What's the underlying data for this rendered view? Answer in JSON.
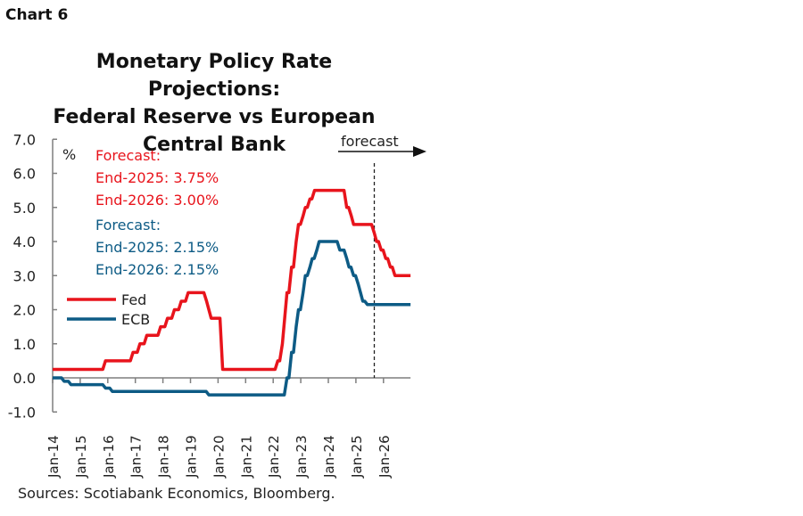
{
  "header": {
    "chart_label": "Chart 6"
  },
  "footer": {
    "source": "Sources: Scotiabank Economics, Bloomberg."
  },
  "colors": {
    "fed": "#e8141c",
    "ecb": "#0d5b85",
    "axis": "#7f7f7f"
  },
  "chart_data": {
    "type": "line",
    "title": "Monetary Policy Rate Projections: Federal Reserve vs European Central Bank",
    "title_lines": [
      "Monetary Policy Rate Projections:",
      "Federal Reserve vs European",
      "Central Bank"
    ],
    "ylabel": "%",
    "ylim": [
      -1.0,
      7.0
    ],
    "y_ticks": [
      "7.0",
      "6.0",
      "5.0",
      "4.0",
      "3.0",
      "2.0",
      "1.0",
      "0.0",
      "-1.0"
    ],
    "x_ticks": [
      "Jan-14",
      "Jan-15",
      "Jan-16",
      "Jan-17",
      "Jan-18",
      "Jan-19",
      "Jan-20",
      "Jan-21",
      "Jan-22",
      "Jan-23",
      "Jan-24",
      "Jan-25",
      "Jan-26"
    ],
    "xlim": [
      "2014-01",
      "2026-12"
    ],
    "forecast_start": "2025-09",
    "forecast_label": "forecast",
    "legend": {
      "placement": "left",
      "entries": [
        "Fed",
        "ECB"
      ]
    },
    "annotations": {
      "fed": [
        "Forecast:",
        "End-2025: 3.75%",
        "End-2026: 3.00%"
      ],
      "ecb": [
        "Forecast:",
        "End-2025: 2.15%",
        "End-2026: 2.15%"
      ]
    },
    "series": [
      {
        "name": "Fed",
        "color": "#e8141c",
        "points": [
          [
            "2014-01",
            0.25
          ],
          [
            "2015-12",
            0.5
          ],
          [
            "2016-12",
            0.75
          ],
          [
            "2017-03",
            1.0
          ],
          [
            "2017-06",
            1.25
          ],
          [
            "2017-12",
            1.5
          ],
          [
            "2018-03",
            1.75
          ],
          [
            "2018-06",
            2.0
          ],
          [
            "2018-09",
            2.25
          ],
          [
            "2018-12",
            2.5
          ],
          [
            "2019-08",
            2.25
          ],
          [
            "2019-09",
            2.0
          ],
          [
            "2019-10",
            1.75
          ],
          [
            "2020-03",
            0.25
          ],
          [
            "2022-03",
            0.5
          ],
          [
            "2022-05",
            1.0
          ],
          [
            "2022-06",
            1.75
          ],
          [
            "2022-07",
            2.5
          ],
          [
            "2022-09",
            3.25
          ],
          [
            "2022-11",
            4.0
          ],
          [
            "2022-12",
            4.5
          ],
          [
            "2023-02",
            4.75
          ],
          [
            "2023-03",
            5.0
          ],
          [
            "2023-05",
            5.25
          ],
          [
            "2023-07",
            5.5
          ],
          [
            "2024-09",
            5.0
          ],
          [
            "2024-11",
            4.75
          ],
          [
            "2024-12",
            4.5
          ],
          [
            "2025-09",
            4.25
          ],
          [
            "2025-10",
            4.0
          ],
          [
            "2025-12",
            3.75
          ],
          [
            "2026-02",
            3.5
          ],
          [
            "2026-04",
            3.25
          ],
          [
            "2026-06",
            3.0
          ],
          [
            "2026-12",
            3.0
          ]
        ]
      },
      {
        "name": "ECB",
        "color": "#0d5b85",
        "points": [
          [
            "2014-01",
            0.0
          ],
          [
            "2014-06",
            -0.1
          ],
          [
            "2014-09",
            -0.2
          ],
          [
            "2015-12",
            -0.3
          ],
          [
            "2016-03",
            -0.4
          ],
          [
            "2019-09",
            -0.5
          ],
          [
            "2022-07",
            0.0
          ],
          [
            "2022-09",
            0.75
          ],
          [
            "2022-11",
            1.5
          ],
          [
            "2022-12",
            2.0
          ],
          [
            "2023-02",
            2.5
          ],
          [
            "2023-03",
            3.0
          ],
          [
            "2023-05",
            3.25
          ],
          [
            "2023-06",
            3.5
          ],
          [
            "2023-08",
            3.75
          ],
          [
            "2023-09",
            4.0
          ],
          [
            "2024-06",
            3.75
          ],
          [
            "2024-09",
            3.5
          ],
          [
            "2024-10",
            3.25
          ],
          [
            "2024-12",
            3.0
          ],
          [
            "2025-02",
            2.75
          ],
          [
            "2025-03",
            2.5
          ],
          [
            "2025-04",
            2.25
          ],
          [
            "2025-06",
            2.15
          ],
          [
            "2026-12",
            2.15
          ]
        ]
      }
    ]
  }
}
